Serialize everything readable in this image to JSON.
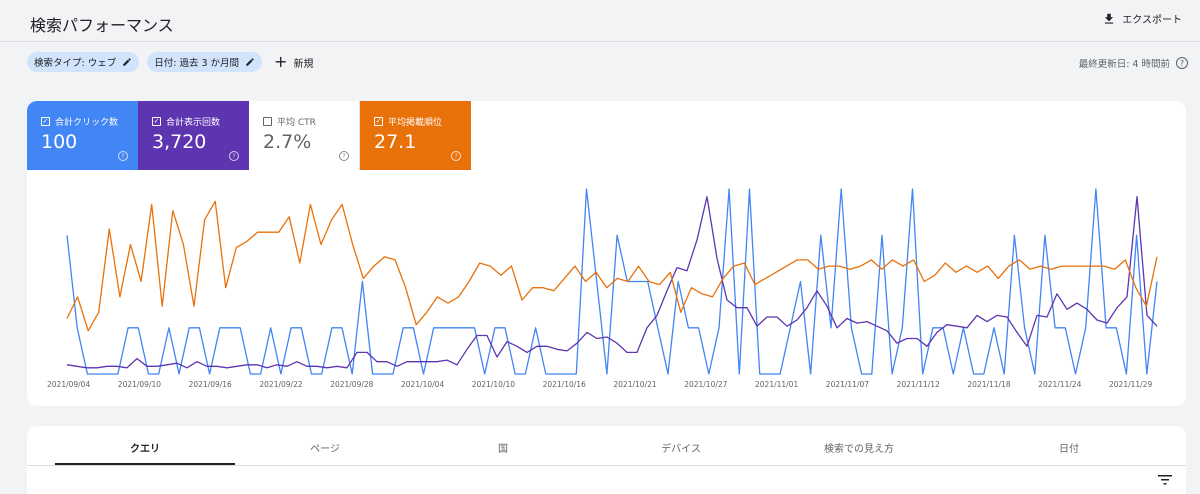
{
  "header": {
    "title": "検索パフォーマンス",
    "export_label": "エクスポート"
  },
  "filters": {
    "chips": [
      "検索タイプ: ウェブ",
      "日付: 過去 3 か月間"
    ],
    "new_label": "新規",
    "last_updated": "最終更新日: 4 時間前"
  },
  "metrics": [
    {
      "label": "合計クリック数",
      "value": "100",
      "checked": true,
      "color": "#4285f4"
    },
    {
      "label": "合計表示回数",
      "value": "3,720",
      "checked": true,
      "color": "#5e35b1"
    },
    {
      "label": "平均 CTR",
      "value": "2.7%",
      "checked": false,
      "color": "#ffffff"
    },
    {
      "label": "平均掲載順位",
      "value": "27.1",
      "checked": true,
      "color": "#e8710a"
    }
  ],
  "chart_data": {
    "type": "line",
    "x_tick_labels": [
      "2021/09/04",
      "2021/09/10",
      "2021/09/16",
      "2021/09/22",
      "2021/09/28",
      "2021/10/04",
      "2021/10/10",
      "2021/10/16",
      "2021/10/21",
      "2021/10/27",
      "2021/11/01",
      "2021/11/07",
      "2021/11/12",
      "2021/11/18",
      "2021/11/24",
      "2021/11/29"
    ],
    "series": [
      {
        "color": "#4285f4",
        "values": [
          3,
          1,
          0,
          0,
          0,
          0,
          1,
          1,
          0,
          0,
          1,
          0,
          1,
          1,
          0,
          1,
          1,
          1,
          0,
          0,
          1,
          0,
          1,
          1,
          0,
          0,
          1,
          1,
          0,
          2,
          0,
          0,
          0,
          1,
          1,
          0,
          1,
          1,
          1,
          1,
          1,
          0,
          1,
          1,
          0,
          0,
          1,
          0,
          0,
          0,
          0,
          4,
          2,
          0,
          3,
          2,
          2,
          2,
          1,
          0,
          2,
          1,
          1,
          0,
          1,
          4,
          0,
          4,
          0,
          0,
          0,
          1,
          2,
          0,
          3,
          1,
          4,
          1,
          0,
          0,
          3,
          0,
          1,
          4,
          0,
          1,
          1,
          0,
          1,
          0,
          0,
          1,
          0,
          3,
          1,
          0,
          3,
          1,
          1,
          0,
          1,
          4,
          1,
          1,
          0,
          3,
          0,
          2
        ]
      },
      {
        "color": "#5e35b1",
        "values": [
          6,
          5,
          4,
          4,
          5,
          5,
          4,
          10,
          5,
          5,
          6,
          7,
          4,
          8,
          5,
          5,
          4,
          5,
          6,
          6,
          4,
          6,
          5,
          8,
          5,
          5,
          4,
          5,
          4,
          14,
          14,
          8,
          8,
          5,
          8,
          8,
          8,
          8,
          9,
          6,
          16,
          25,
          25,
          11,
          21,
          18,
          14,
          18,
          18,
          16,
          15,
          20,
          27,
          23,
          24,
          20,
          14,
          14,
          30,
          38,
          54,
          69,
          67,
          87,
          115,
          75,
          48,
          43,
          43,
          31,
          37,
          37,
          31,
          35,
          43,
          54,
          44,
          30,
          36,
          33,
          34,
          31,
          28,
          20,
          23,
          23,
          18,
          27,
          32,
          31,
          30,
          38,
          34,
          38,
          37,
          27,
          18,
          38,
          37,
          52,
          42,
          46,
          42,
          35,
          33,
          43,
          50,
          115,
          38,
          31
        ]
      },
      {
        "color": "#e8710a",
        "values": [
          18,
          25,
          14,
          20,
          47,
          25,
          42,
          30,
          55,
          22,
          53,
          42,
          22,
          50,
          56,
          28,
          41,
          43,
          46,
          46,
          46,
          51,
          36,
          55,
          42,
          50,
          55,
          42,
          31,
          35,
          38,
          37,
          28,
          16,
          20,
          25,
          23,
          25,
          30,
          36,
          35,
          32,
          35,
          24,
          28,
          28,
          27,
          31,
          35,
          30,
          33,
          28,
          31,
          30,
          35,
          30,
          29,
          33,
          20,
          28,
          26,
          25,
          31,
          35,
          36,
          29,
          31,
          33,
          35,
          37,
          37,
          34,
          35,
          35,
          34,
          35,
          37,
          34,
          37,
          35,
          37,
          30,
          32,
          36,
          33,
          35,
          33,
          35,
          31,
          35,
          37,
          34,
          35,
          34,
          35,
          35,
          35,
          35,
          35,
          34,
          37,
          28,
          22,
          38
        ]
      }
    ]
  },
  "tabs": [
    "クエリ",
    "ページ",
    "国",
    "デバイス",
    "検索での見え方",
    "日付"
  ]
}
